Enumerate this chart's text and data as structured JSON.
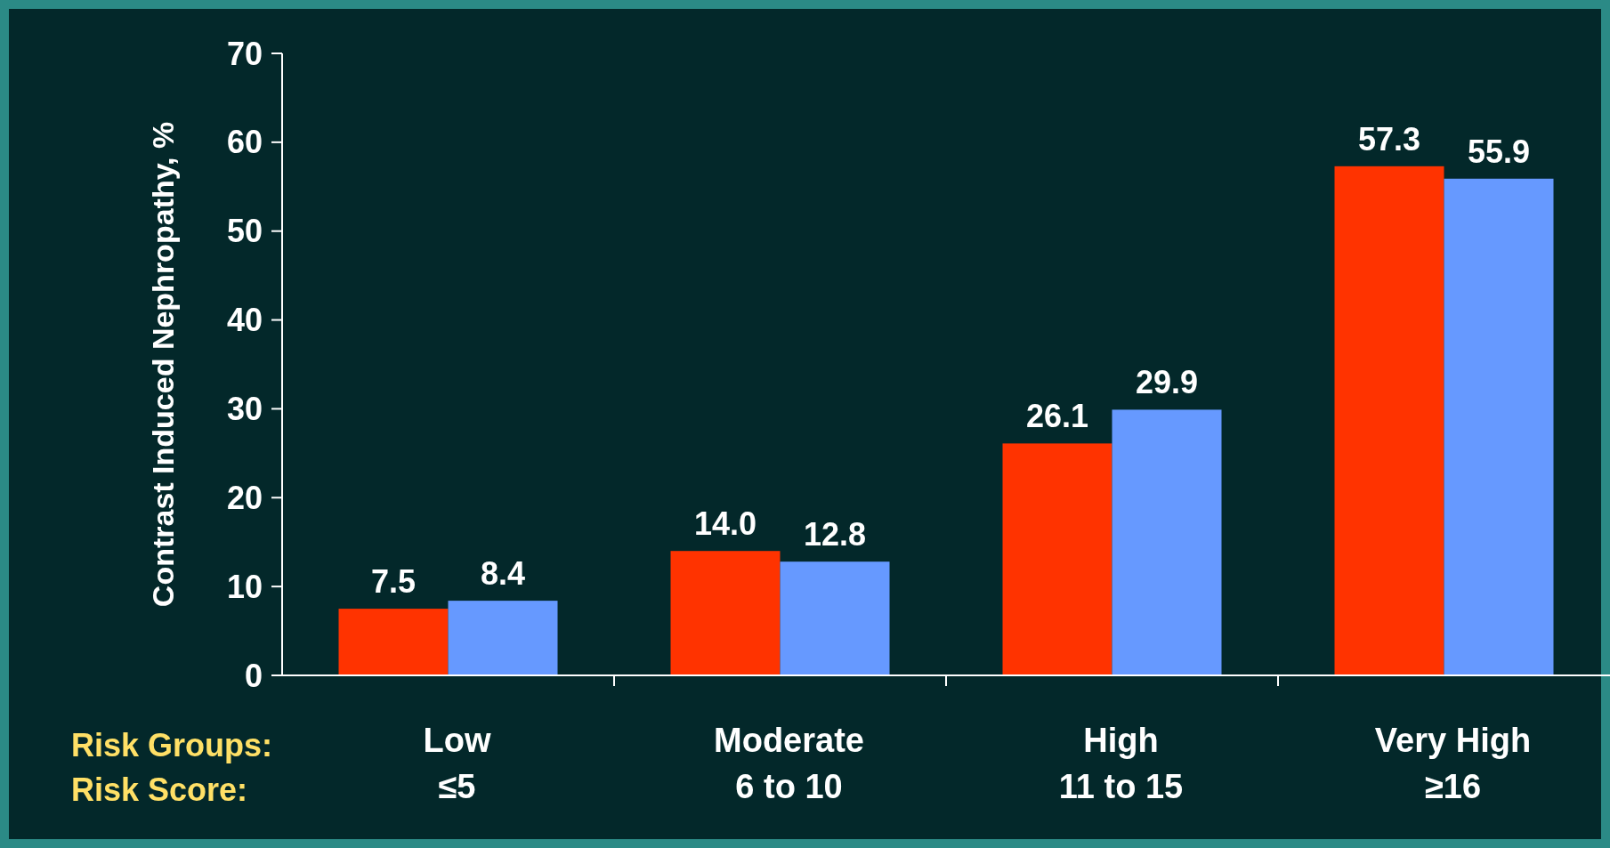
{
  "chart_data": {
    "type": "bar",
    "ylabel": "Contrast Induced Nephropathy, %",
    "categories": [
      "Low\n≤5",
      "Moderate\n6 to 10",
      "High\n11 to 15",
      "Very High\n≥16"
    ],
    "series": [
      {
        "color": "#ff3300",
        "values": [
          7.5,
          14.0,
          26.1,
          57.3
        ],
        "value_labels": [
          "7.5",
          "14.0",
          "26.1",
          "57.3"
        ]
      },
      {
        "color": "#6699ff",
        "values": [
          8.4,
          12.8,
          29.9,
          55.9
        ],
        "value_labels": [
          "8.4",
          "12.8",
          "29.9",
          "55.9"
        ]
      }
    ],
    "annotations": [
      "Risk Groups:",
      "Risk Score:"
    ],
    "ylim": [
      0,
      70
    ],
    "yticks": [
      0,
      10,
      20,
      30,
      40,
      50,
      60,
      70
    ],
    "grid": false
  }
}
